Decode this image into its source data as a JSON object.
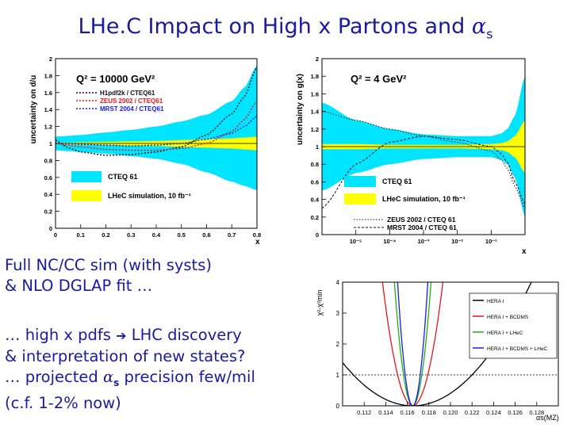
{
  "slide": {
    "title_main": "LHe.C Impact on High x Partons and ",
    "title_alpha": "α",
    "title_sub": "s",
    "text_block1": [
      "Full NC/CC sim (with systs)",
      "& NLO DGLAP fit …"
    ],
    "text_block2_line1": "… high x pdfs ",
    "text_block2_arrow": "➔",
    "text_block2_line1b": " LHC discovery",
    "text_block2_line2": "& interpretation of new states?",
    "text_block2_line3_pre": "… projected ",
    "text_block2_line3_alpha": "α",
    "text_block2_line3_sub": "s",
    "text_block2_line3_post": " precision few/mil",
    "text_block2_line4": "(c.f. 1-2% now)"
  },
  "chart_data": [
    {
      "type": "area",
      "ylabel": "uncertainty on d/u",
      "xlabel": "x",
      "xlim": [
        0,
        0.8
      ],
      "ylim": [
        0,
        2
      ],
      "x_ticks": [
        "0",
        "0.1",
        "0.2",
        "0.3",
        "0.4",
        "0.5",
        "0.6",
        "0.7",
        "0.8"
      ],
      "y_ticks": [
        "0",
        "0.2",
        "0.4",
        "0.6",
        "0.8",
        "1",
        "1.2",
        "1.4",
        "1.6",
        "1.8",
        "2"
      ],
      "annotation": "Q² = 10000 GeV²",
      "line_legend": [
        {
          "name": "H1pdf2k / CTEQ61",
          "color": "#111111"
        },
        {
          "name": "ZEUS 2002 / CTEQ61",
          "color": "#e8141e"
        },
        {
          "name": "MRST 2004 / CTEQ61",
          "color": "#1a1ae8"
        }
      ],
      "band_legend": [
        {
          "name": "CTEQ 61",
          "color": "#00e5ff"
        },
        {
          "name": "LHeC simulation, 10 fb⁻¹",
          "color": "#ffff00"
        }
      ],
      "x": [
        0,
        0.05,
        0.1,
        0.2,
        0.3,
        0.4,
        0.5,
        0.6,
        0.7,
        0.75,
        0.8
      ],
      "cteq_band_upper": [
        1.08,
        1.09,
        1.1,
        1.13,
        1.16,
        1.2,
        1.26,
        1.34,
        1.5,
        1.66,
        1.92
      ],
      "cteq_band_lower": [
        0.92,
        0.91,
        0.9,
        0.88,
        0.85,
        0.82,
        0.76,
        0.66,
        0.55,
        0.5,
        0.45
      ],
      "lhec_band_upper": [
        1.01,
        1.01,
        1.015,
        1.02,
        1.025,
        1.03,
        1.04,
        1.05,
        1.06,
        1.07,
        1.08
      ],
      "lhec_band_lower": [
        0.99,
        0.99,
        0.985,
        0.98,
        0.975,
        0.97,
        0.96,
        0.95,
        0.94,
        0.93,
        0.92
      ],
      "series": [
        {
          "name": "H1pdf2k / CTEQ61",
          "color": "#111111",
          "values": [
            1.04,
            0.95,
            0.9,
            0.86,
            0.87,
            0.9,
            0.96,
            1.1,
            1.35,
            1.55,
            1.9
          ]
        },
        {
          "name": "ZEUS 2002 / CTEQ61",
          "color": "#e8141e",
          "values": [
            1.0,
            0.98,
            0.96,
            0.93,
            0.92,
            0.92,
            0.94,
            1.0,
            1.14,
            1.28,
            1.5
          ]
        },
        {
          "name": "MRST 2004 / CTEQ61",
          "color": "#1a1ae8",
          "values": [
            1.0,
            1.0,
            0.99,
            0.98,
            0.97,
            0.98,
            1.0,
            1.05,
            1.12,
            1.2,
            1.32
          ]
        }
      ]
    },
    {
      "type": "area",
      "ylabel": "uncertainty on g(x)",
      "xlabel": "x",
      "xscale": "log",
      "xlim": [
        1e-06,
        1
      ],
      "ylim": [
        0,
        2
      ],
      "x_ticks": [
        "10⁻⁵",
        "10⁻⁴",
        "10⁻³",
        "10⁻²",
        "10⁻¹"
      ],
      "y_ticks": [
        "0",
        "0.2",
        "0.4",
        "0.6",
        "0.8",
        "1",
        "1.2",
        "1.4",
        "1.6",
        "1.8",
        "2"
      ],
      "annotation": "Q² = 4 GeV²",
      "band_legend": [
        {
          "name": "CTEQ 61",
          "color": "#00e5ff"
        },
        {
          "name": "LHeC simulation, 10 fb⁻¹",
          "color": "#ffff00"
        }
      ],
      "line_legend": [
        {
          "name": "ZEUS 2002 / CTEQ 61",
          "color": "#111111"
        },
        {
          "name": "MRST 2004 / CTEQ 61",
          "color": "#111111"
        }
      ],
      "x": [
        1e-06,
        1e-05,
        0.0001,
        0.001,
        0.01,
        0.1,
        0.2,
        0.3,
        0.5,
        1
      ],
      "cteq_band_upper": [
        1.5,
        1.3,
        1.2,
        1.14,
        1.12,
        1.12,
        1.15,
        1.2,
        1.35,
        1.8
      ],
      "cteq_band_lower": [
        0.5,
        0.7,
        0.8,
        0.86,
        0.88,
        0.88,
        0.85,
        0.8,
        0.65,
        0.2
      ],
      "lhec_band_upper": [
        1.03,
        1.03,
        1.02,
        1.02,
        1.02,
        1.03,
        1.04,
        1.06,
        1.12,
        1.3
      ],
      "lhec_band_lower": [
        0.97,
        0.97,
        0.98,
        0.98,
        0.98,
        0.97,
        0.96,
        0.94,
        0.88,
        0.7
      ],
      "series": [
        {
          "name": "ZEUS 2002 / CTEQ 61",
          "color": "#111111",
          "values": [
            1.4,
            1.3,
            1.2,
            1.12,
            1.05,
            0.95,
            0.85,
            0.75,
            0.55,
            0.3
          ]
        },
        {
          "name": "MRST 2004 / CTEQ 61",
          "color": "#111111",
          "values": [
            0.3,
            0.8,
            1.05,
            1.12,
            1.08,
            1.0,
            0.92,
            0.82,
            0.6,
            0.35
          ]
        }
      ]
    },
    {
      "type": "line",
      "ylabel": "χ²-χ²min",
      "xlabel": "αs(MZ)",
      "xlim": [
        0.11,
        0.13
      ],
      "ylim": [
        0,
        4
      ],
      "x_ticks": [
        "0.112",
        "0.114",
        "0.116",
        "0.118",
        "0.120",
        "0.122",
        "0.124",
        "0.126",
        "0.128"
      ],
      "y_ticks": [
        "0",
        "1",
        "2",
        "3",
        "4"
      ],
      "reference_line_y": 1,
      "series": [
        {
          "name": "HERA I",
          "color": "#000000",
          "center": 0.1165,
          "sigma": 0.0055
        },
        {
          "name": "HERA I + BCDMS",
          "color": "#e8141e",
          "center": 0.1165,
          "sigma": 0.0014
        },
        {
          "name": "HERA I + LHeC",
          "color": "#14b414",
          "center": 0.1165,
          "sigma": 0.00085
        },
        {
          "name": "HERA I + BCDMS + LHeC",
          "color": "#1a1ae8",
          "center": 0.1165,
          "sigma": 0.0007
        }
      ]
    }
  ]
}
